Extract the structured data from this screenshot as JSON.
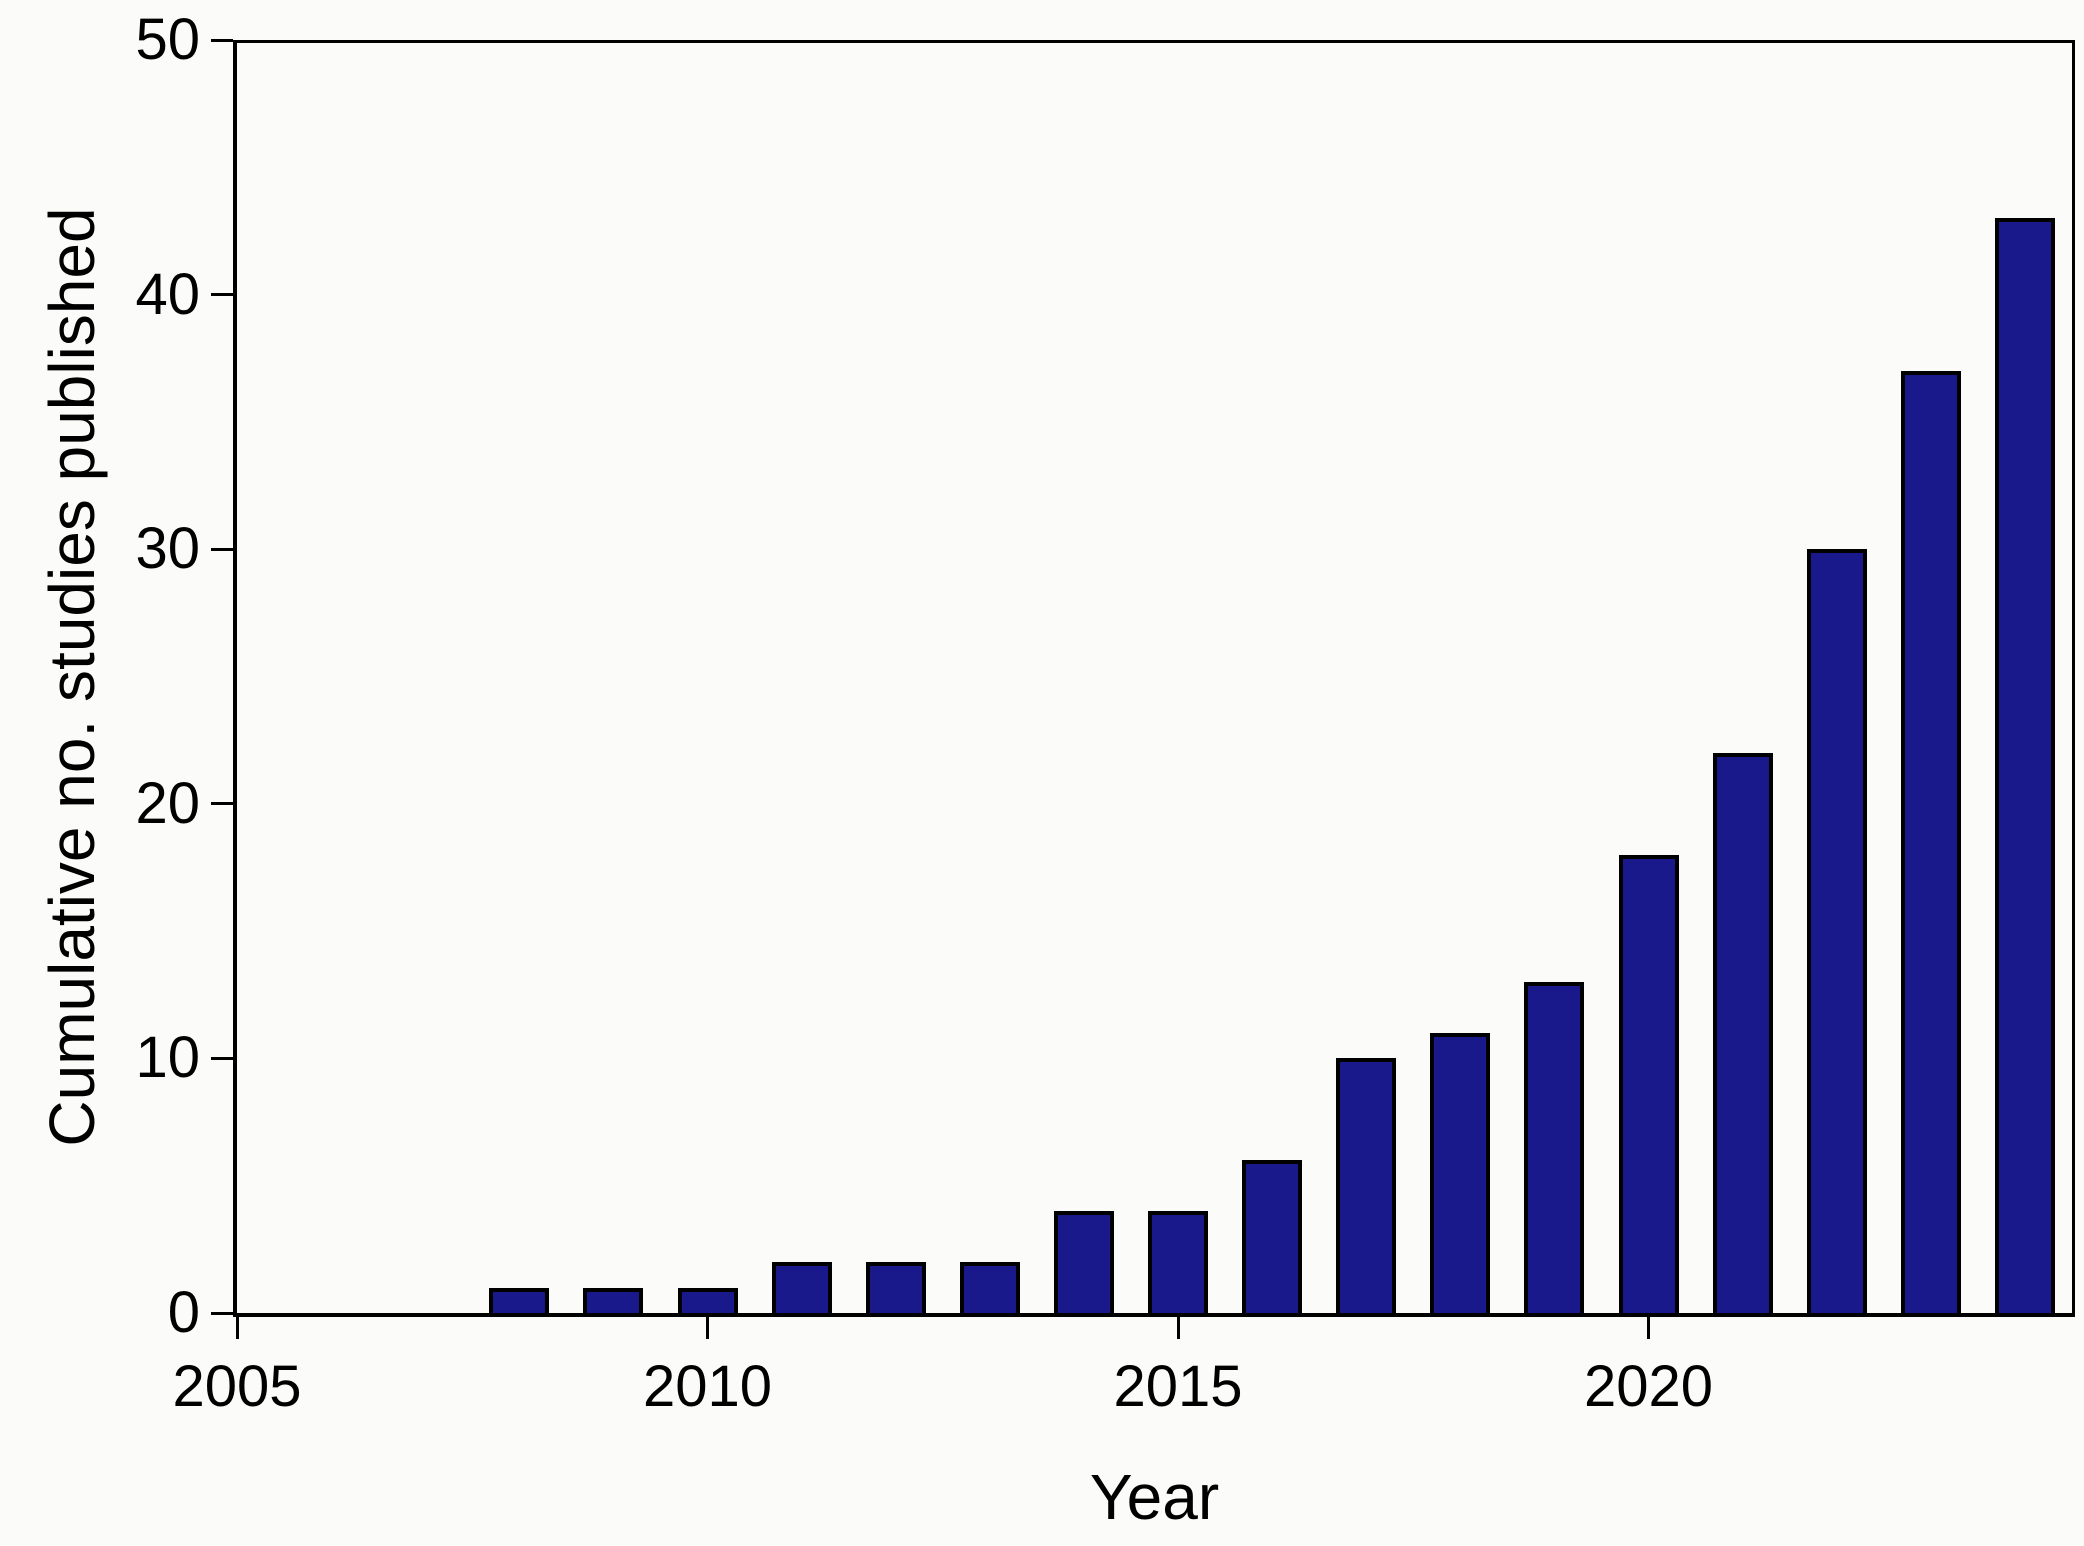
{
  "figure": {
    "background": "#fbfbf9",
    "text_color": "#000000"
  },
  "chart_data": {
    "type": "bar",
    "title": "",
    "xlabel": "Year",
    "ylabel": "Cumulative no. studies published",
    "categories": [
      2008,
      2009,
      2010,
      2011,
      2012,
      2013,
      2014,
      2015,
      2016,
      2017,
      2018,
      2019,
      2020,
      2021,
      2022,
      2023,
      2024
    ],
    "values": [
      1,
      1,
      1,
      2,
      2,
      2,
      4,
      4,
      6,
      10,
      11,
      13,
      18,
      22,
      30,
      37,
      43
    ],
    "xlim": [
      2005,
      2024.5
    ],
    "ylim": [
      0,
      50
    ],
    "x_ticks": [
      2005,
      2010,
      2015,
      2020
    ],
    "y_ticks": [
      0,
      10,
      20,
      30,
      40,
      50
    ],
    "grid": false,
    "legend": null,
    "frame": "full-box",
    "bar_color": "#19198c",
    "bar_edge_color": "#000000",
    "axis_color": "#000000"
  }
}
